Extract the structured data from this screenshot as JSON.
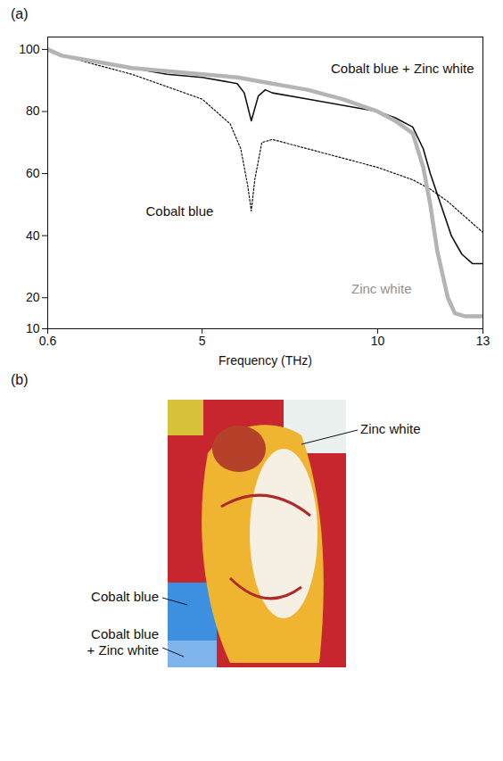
{
  "chart_data": {
    "type": "line",
    "panel_label": "(a)",
    "x_label": "Frequency (THz)",
    "xlim": [
      0.6,
      13
    ],
    "xticks": [
      0.6,
      5,
      10,
      13
    ],
    "ylim": [
      10,
      104
    ],
    "yticks": [
      10,
      20,
      40,
      60,
      80,
      100
    ],
    "grid": false,
    "series": [
      {
        "name": "Cobalt blue + Zinc white",
        "color": "#111111",
        "line_style": "solid",
        "x": [
          0.6,
          1,
          2,
          3,
          4,
          5,
          6,
          6.2,
          6.4,
          6.6,
          6.8,
          7,
          8,
          9,
          10,
          10.5,
          11,
          11.3,
          11.5,
          11.8,
          12.1,
          12.4,
          12.7,
          13
        ],
        "values": [
          100,
          98,
          96,
          94,
          92,
          91,
          89,
          86,
          77,
          85,
          87,
          86,
          84,
          82,
          80,
          78,
          75,
          68,
          60,
          50,
          40,
          34,
          31,
          31
        ]
      },
      {
        "name": "Cobalt blue",
        "color": "#111111",
        "line_style": "dotted",
        "x": [
          0.6,
          1,
          2,
          3,
          4,
          5,
          5.8,
          6.1,
          6.3,
          6.4,
          6.5,
          6.7,
          7,
          8,
          9,
          10,
          10.5,
          11,
          11.5,
          12,
          12.5,
          13
        ],
        "values": [
          100,
          98,
          95,
          92,
          88,
          84,
          76,
          68,
          56,
          48,
          58,
          70,
          71,
          68,
          65,
          62,
          60,
          58,
          55,
          51,
          46,
          41
        ]
      },
      {
        "name": "Zinc white",
        "color": "#b4b4b4",
        "line_style": "thick",
        "x": [
          0.6,
          1,
          2,
          3,
          4,
          5,
          6,
          7,
          8,
          9,
          10,
          10.5,
          11,
          11.3,
          11.5,
          11.7,
          12,
          12.2,
          12.5,
          13
        ],
        "values": [
          100,
          98,
          96,
          94,
          93,
          92,
          91,
          89,
          87,
          84,
          80,
          77,
          73,
          62,
          50,
          35,
          20,
          15,
          14,
          14
        ]
      }
    ]
  },
  "figure_b": {
    "panel_label": "(b)",
    "labels": [
      "Zinc white",
      "Cobalt blue",
      "Cobalt blue + Zinc white"
    ]
  }
}
